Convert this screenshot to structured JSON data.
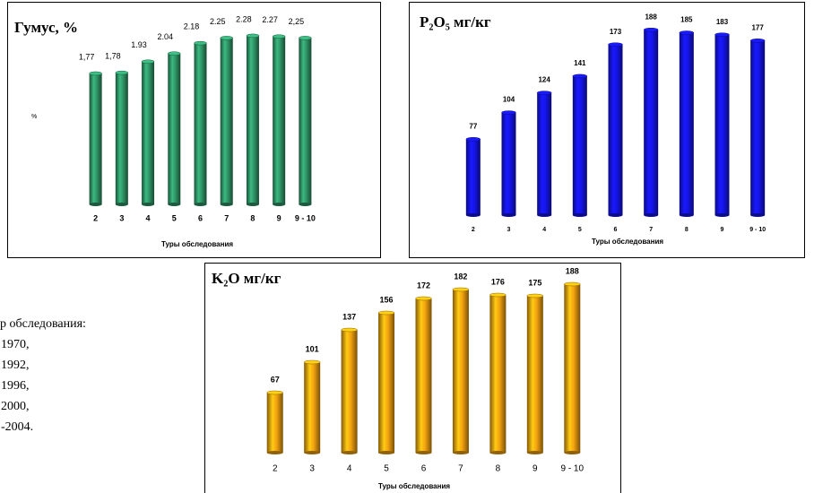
{
  "chart_data": [
    {
      "type": "bar",
      "title": "Гумус, %",
      "y_label": "%",
      "x_label": "Туры обследования",
      "categories": [
        "2",
        "3",
        "4",
        "5",
        "6",
        "7",
        "8",
        "9",
        "9 - 10"
      ],
      "values": [
        1.77,
        1.78,
        1.93,
        2.04,
        2.18,
        2.25,
        2.28,
        2.27,
        2.25
      ],
      "value_labels": [
        "1,77",
        "1,78",
        "1.93",
        "2.04",
        "2.18",
        "2.25",
        "2.28",
        "2.27",
        "2,25"
      ],
      "color": "#2f9466",
      "ylim": [
        0,
        2.4
      ]
    },
    {
      "type": "bar",
      "title": "P₂O₅ мг/кг",
      "x_label": "Туры обследования",
      "categories": [
        "2",
        "3",
        "4",
        "5",
        "6",
        "7",
        "8",
        "9",
        "9 - 10"
      ],
      "values": [
        77,
        104,
        124,
        141,
        173,
        188,
        185,
        183,
        177
      ],
      "color": "#1414e6",
      "ylim": [
        0,
        200
      ]
    },
    {
      "type": "bar",
      "title": "K₂O мг/кг",
      "x_label": "Туры обследования",
      "categories": [
        "2",
        "3",
        "4",
        "5",
        "6",
        "7",
        "8",
        "9",
        "9 - 10"
      ],
      "values": [
        67,
        101,
        137,
        156,
        172,
        182,
        176,
        175,
        188
      ],
      "color": "#f2a20f",
      "ylim": [
        0,
        200
      ]
    }
  ],
  "side_text": [
    "р обследования:",
    "1970,",
    "1992,",
    "1996,",
    "2000,",
    "-2004."
  ]
}
